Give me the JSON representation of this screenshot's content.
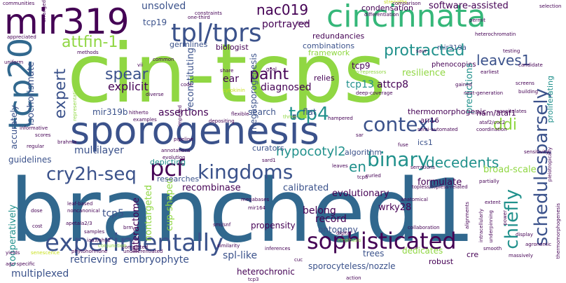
{
  "background": "#ffffff",
  "palette": {
    "purple": "#440154",
    "indigo": "#3b528b",
    "blue": "#31688e",
    "teal": "#21918c",
    "green": "#35b779",
    "lime": "#90d743",
    "yellow": "#c8e020"
  },
  "words": {
    "branched1": "branched1",
    "cin_tcps": "cin-tcps",
    "sporogenesis": "sporogenesis",
    "cincinnata": "cincinnata",
    "mir319": "mir319",
    "tcp20": "tcp20",
    "tpl_tprs": "tpl/tprs",
    "experimentally": "experimentally",
    "sophisticated": "sophisticated",
    "pcf": "pcf",
    "kingdoms": "kingdoms",
    "tcp4": "tcp4",
    "context": "context",
    "binary": "binary",
    "cry2h_seq": "cry2h-seq",
    "schedulesparsely": "schedulesparsely",
    "chiefly": "chiefly",
    "protracted": "protracted",
    "leaves1": "leaves1",
    "nac019": "nac019",
    "paint": "paint",
    "spear": "spear",
    "attfin_1": "attfin-1",
    "expert": "expert",
    "decedents": "decedents",
    "en": "en",
    "ddi": "ddi",
    "hypocotyl2": "hypocotyl2",
    "unsolved": "unsolved",
    "portrayed": "portrayed",
    "software_assisted": "software-assisted",
    "condensation": "condensation",
    "tcp19": "tcp19",
    "redundancies": "redundancies",
    "combinations": "combinations",
    "framework": "framework",
    "mir319a": "mir319a",
    "germlines": "germlines",
    "biologist": "biologist",
    "reconstituting": "reconstituting",
    "megasporogenesis": "megasporogenesis",
    "diagnosed": "diagnosed",
    "relies": "relies",
    "tcp9": "tcp9",
    "tcp13": "tcp13",
    "attcp8": "attcp8",
    "resilience": "resilience",
    "phenocopies": "phenocopies",
    "predictions": "predictions",
    "explicit": "explicit",
    "ear": "ear",
    "isochorismate": "isochorismate",
    "accurately": "accurately",
    "mir319b": "mir319b",
    "assertions": "assertions",
    "search": "search",
    "flat": "flat",
    "thermomorphogenic": "thermomorphogenic",
    "nam_ataf1": "nam/ataf1",
    "arr16": "arr16",
    "multilayer": "multilayer",
    "curators": "curators",
    "algorithm": "algorithm",
    "ics1": "ics1",
    "guidelines": "guidelines",
    "depicting": "depicting",
    "recombinase": "recombinase",
    "calibrated": "calibrated",
    "formulate": "formulate",
    "broad_scale": "broad-scale",
    "evolutionary": "evolutionary",
    "wrky28": "wrky28",
    "interactome": "interactome",
    "cup_shaped": "cup-shaped",
    "nontargeted": "nontargeted",
    "belong": "belong",
    "record": "record",
    "ontogeny": "ontogeny",
    "tcp5": "tcp5",
    "propensity": "propensity",
    "dedicates": "dedicates",
    "trees": "trees",
    "cooperatively": "cooperatively",
    "retrieving": "retrieving",
    "embryophyte": "embryophyte",
    "spl_like": "spl-like",
    "sporocyteless_nozzle": "sporocyteless/nozzle",
    "heterochronic": "heterochronic",
    "multiplexed": "multiplexed",
    "robust": "robust",
    "cre": "cre",
    "proliferating": "proliferating",
    "researches": "researches",
    "strengths": "strengths",
    "communities": "communities",
    "constraints": "constraints",
    "one_third": "one-third",
    "hook": "hook",
    "differentiation": "differentiation",
    "comparison": "comparison",
    "permit": "permit",
    "selection": "selection",
    "appreciated": "appreciated",
    "heterochromatin": "heterochromatin",
    "testing": "testing",
    "uniform": "uniform",
    "methods": "methods",
    "saur": "saur",
    "candidate": "candidate",
    "earliest": "earliest",
    "vii": "vii",
    "common": "common",
    "co_repressors": "co-repressors",
    "gained": "gained",
    "screens": "screens",
    "building": "building",
    "code": "code",
    "share": "share",
    "goal": "goal",
    "deep_coverage": "deep-coverage",
    "next_generation": "next-generation",
    "cytokinin": "cytokinin",
    "diverse": "diverse",
    "hitherto": "hitherto",
    "examples": "examples",
    "depositing": "depositing",
    "three_fold": "three-fold",
    "hampered": "hampered",
    "semi_automated": "semi-automated",
    "ataf2_cuc2": "ataf2/cuc2",
    "coordination": "coordination",
    "recapitulates": "recapitulates",
    "informative": "informative",
    "scores": "scores",
    "regular": "regular",
    "brahma": "brahma",
    "annotations": "annotations",
    "evolution": "evolution",
    "pipeline": "pipeline",
    "sar": "sar",
    "sensitivity": "sensitivity",
    "fuse": "fuse",
    "serrations": "serrations",
    "sard1": "sard1",
    "leaves": "leaves",
    "curled": "curled",
    "tcp8": "tcp8",
    "partially": "partially",
    "anatomical": "anatomical",
    "topless_topless_related": "topless/topless-related",
    "extent": "extent",
    "pleiotropically": "pleiotropically",
    "thermomorphogenesis": "thermomorphogenesis",
    "leaf_based": "leaf-based",
    "noncanonical": "noncanonical",
    "apetala2_3": "apetala2/3",
    "samples": "samples",
    "brm": "brm",
    "iaa3_shy2": "iaa3/shy2",
    "smi_snf": "smi/snf",
    "megabases": "megabases",
    "mir164": "mir164",
    "digital": "digital",
    "emphasis": "emphasis",
    "collaboration": "collaboration",
    "alignments": "alignments",
    "intracellularly": "intracellularly",
    "dose": "dose",
    "cost": "cost",
    "completed": "completed",
    "phytohormone": "phytohormone",
    "conjunction": "conjunction",
    "undifferentiated": "undifferentiated",
    "similarity": "similarity",
    "inferences": "inferences",
    "underpinning": "underpinning",
    "display": "display",
    "smooth": "smooth",
    "agronomic": "agronomic",
    "power": "power",
    "massively": "massively",
    "cuc": "cuc",
    "tcp3": "tcp3",
    "action": "action",
    "yields": "yields",
    "age_specific": "age-specific",
    "senescence": "senescence",
    "arranged": "arranged",
    "representatives": "representatives",
    "impeded": "impeded",
    "flexible": "flexible"
  }
}
